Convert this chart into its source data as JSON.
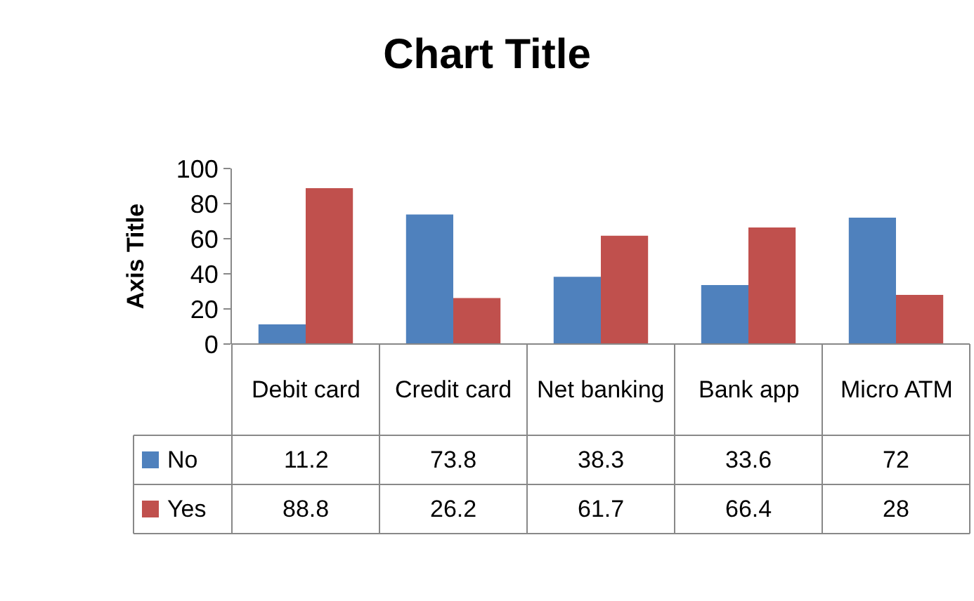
{
  "chart_data": {
    "type": "bar",
    "title": "Chart Title",
    "ylabel": "Axis Title",
    "categories": [
      "Debit card",
      "Credit card",
      "Net banking",
      "Bank app",
      "Micro ATM"
    ],
    "series": [
      {
        "name": "No",
        "color": "#4f81bd",
        "values": [
          11.2,
          73.8,
          38.3,
          33.6,
          72
        ]
      },
      {
        "name": "Yes",
        "color": "#c0504d",
        "values": [
          88.8,
          26.2,
          61.7,
          66.4,
          28
        ]
      }
    ],
    "ylim": [
      0,
      100
    ],
    "yticks": [
      0,
      20,
      40,
      60,
      80,
      100
    ],
    "grid": false,
    "data_labels": true,
    "legend": "bottom left"
  }
}
